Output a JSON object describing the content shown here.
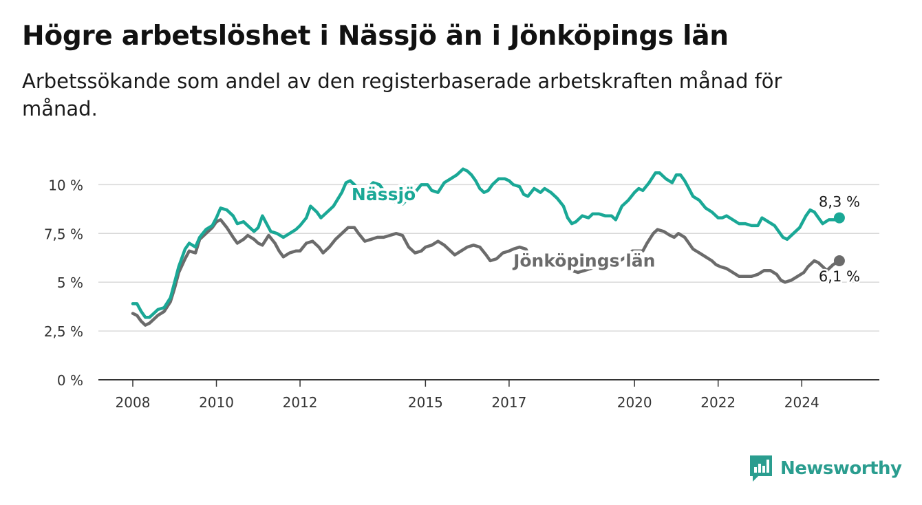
{
  "title": "Högre arbetslöshet i Nässjö än i Jönköpings län",
  "subtitle": "Arbetssökande som andel av den registerbaserade arbetskraften månad för månad.",
  "brand": {
    "name": "Newsworthy",
    "logo_icon": "bar-chart-speech-icon"
  },
  "colors": {
    "nassjo": "#1aa896",
    "lan": "#6b6b6b",
    "grid": "#d9d9d9",
    "axis": "#333333"
  },
  "chart_data": {
    "type": "line",
    "xlim": [
      2008.0,
      2025.0
    ],
    "ylim": [
      0,
      11
    ],
    "yticks": [
      0,
      2.5,
      5,
      7.5,
      10
    ],
    "ytick_labels": [
      "0 %",
      "2,5 %",
      "5 %",
      "7,5 %",
      "10 %"
    ],
    "xticks": [
      2008,
      2010,
      2012,
      2015,
      2017,
      2020,
      2022,
      2024
    ],
    "xtick_labels": [
      "2008",
      "2010",
      "2012",
      "2015",
      "2017",
      "2020",
      "2022",
      "2024"
    ],
    "grid": true,
    "series": [
      {
        "name": "Nässjö",
        "color": "#1aa896",
        "end_label": "8,3 %",
        "points": [
          [
            2008.0,
            3.9
          ],
          [
            2008.1,
            3.9
          ],
          [
            2008.2,
            3.5
          ],
          [
            2008.3,
            3.2
          ],
          [
            2008.4,
            3.2
          ],
          [
            2008.5,
            3.4
          ],
          [
            2008.6,
            3.6
          ],
          [
            2008.75,
            3.7
          ],
          [
            2008.9,
            4.2
          ],
          [
            2009.0,
            5.0
          ],
          [
            2009.1,
            5.8
          ],
          [
            2009.25,
            6.7
          ],
          [
            2009.35,
            7.0
          ],
          [
            2009.5,
            6.8
          ],
          [
            2009.6,
            7.3
          ],
          [
            2009.75,
            7.7
          ],
          [
            2009.9,
            7.9
          ],
          [
            2010.0,
            8.3
          ],
          [
            2010.1,
            8.8
          ],
          [
            2010.25,
            8.7
          ],
          [
            2010.4,
            8.4
          ],
          [
            2010.5,
            8.0
          ],
          [
            2010.65,
            8.1
          ],
          [
            2010.8,
            7.8
          ],
          [
            2010.9,
            7.6
          ],
          [
            2011.0,
            7.8
          ],
          [
            2011.1,
            8.4
          ],
          [
            2011.2,
            8.0
          ],
          [
            2011.3,
            7.6
          ],
          [
            2011.45,
            7.5
          ],
          [
            2011.6,
            7.3
          ],
          [
            2011.75,
            7.5
          ],
          [
            2011.9,
            7.7
          ],
          [
            2012.0,
            7.9
          ],
          [
            2012.15,
            8.3
          ],
          [
            2012.25,
            8.9
          ],
          [
            2012.4,
            8.6
          ],
          [
            2012.5,
            8.3
          ],
          [
            2012.65,
            8.6
          ],
          [
            2012.8,
            8.9
          ],
          [
            2013.0,
            9.6
          ],
          [
            2013.1,
            10.1
          ],
          [
            2013.2,
            10.2
          ],
          [
            2013.3,
            10.0
          ],
          [
            2013.45,
            9.6
          ],
          [
            2013.6,
            9.8
          ],
          [
            2013.75,
            10.1
          ],
          [
            2013.9,
            10.0
          ],
          [
            2014.0,
            9.7
          ],
          [
            2014.1,
            9.6
          ],
          [
            2014.2,
            9.2
          ],
          [
            2014.3,
            9.1
          ],
          [
            2014.45,
            9.0
          ],
          [
            2014.6,
            9.3
          ],
          [
            2014.75,
            9.6
          ],
          [
            2014.9,
            10.0
          ],
          [
            2015.05,
            10.0
          ],
          [
            2015.15,
            9.7
          ],
          [
            2015.3,
            9.6
          ],
          [
            2015.45,
            10.1
          ],
          [
            2015.6,
            10.3
          ],
          [
            2015.75,
            10.5
          ],
          [
            2015.9,
            10.8
          ],
          [
            2016.0,
            10.7
          ],
          [
            2016.1,
            10.5
          ],
          [
            2016.2,
            10.2
          ],
          [
            2016.3,
            9.8
          ],
          [
            2016.4,
            9.6
          ],
          [
            2016.5,
            9.7
          ],
          [
            2016.6,
            10.0
          ],
          [
            2016.75,
            10.3
          ],
          [
            2016.9,
            10.3
          ],
          [
            2017.0,
            10.2
          ],
          [
            2017.1,
            10.0
          ],
          [
            2017.25,
            9.9
          ],
          [
            2017.35,
            9.5
          ],
          [
            2017.45,
            9.4
          ],
          [
            2017.6,
            9.8
          ],
          [
            2017.75,
            9.6
          ],
          [
            2017.85,
            9.8
          ],
          [
            2018.0,
            9.6
          ],
          [
            2018.15,
            9.3
          ],
          [
            2018.3,
            8.9
          ],
          [
            2018.4,
            8.3
          ],
          [
            2018.5,
            8.0
          ],
          [
            2018.6,
            8.1
          ],
          [
            2018.75,
            8.4
          ],
          [
            2018.9,
            8.3
          ],
          [
            2019.0,
            8.5
          ],
          [
            2019.15,
            8.5
          ],
          [
            2019.3,
            8.4
          ],
          [
            2019.45,
            8.4
          ],
          [
            2019.55,
            8.2
          ],
          [
            2019.7,
            8.9
          ],
          [
            2019.85,
            9.2
          ],
          [
            2020.0,
            9.6
          ],
          [
            2020.1,
            9.8
          ],
          [
            2020.2,
            9.7
          ],
          [
            2020.35,
            10.1
          ],
          [
            2020.5,
            10.6
          ],
          [
            2020.6,
            10.6
          ],
          [
            2020.75,
            10.3
          ],
          [
            2020.9,
            10.1
          ],
          [
            2021.0,
            10.5
          ],
          [
            2021.1,
            10.5
          ],
          [
            2021.2,
            10.2
          ],
          [
            2021.3,
            9.8
          ],
          [
            2021.4,
            9.4
          ],
          [
            2021.55,
            9.2
          ],
          [
            2021.7,
            8.8
          ],
          [
            2021.85,
            8.6
          ],
          [
            2022.0,
            8.3
          ],
          [
            2022.1,
            8.3
          ],
          [
            2022.2,
            8.4
          ],
          [
            2022.35,
            8.2
          ],
          [
            2022.5,
            8.0
          ],
          [
            2022.65,
            8.0
          ],
          [
            2022.8,
            7.9
          ],
          [
            2022.95,
            7.9
          ],
          [
            2023.05,
            8.3
          ],
          [
            2023.2,
            8.1
          ],
          [
            2023.35,
            7.9
          ],
          [
            2023.45,
            7.6
          ],
          [
            2023.55,
            7.3
          ],
          [
            2023.65,
            7.2
          ],
          [
            2023.8,
            7.5
          ],
          [
            2023.95,
            7.8
          ],
          [
            2024.1,
            8.4
          ],
          [
            2024.2,
            8.7
          ],
          [
            2024.3,
            8.6
          ],
          [
            2024.4,
            8.3
          ],
          [
            2024.5,
            8.0
          ],
          [
            2024.65,
            8.2
          ],
          [
            2024.8,
            8.2
          ],
          [
            2024.9,
            8.3
          ]
        ]
      },
      {
        "name": "Jönköpings län",
        "color": "#6b6b6b",
        "end_label": "6,1 %",
        "points": [
          [
            2008.0,
            3.4
          ],
          [
            2008.1,
            3.3
          ],
          [
            2008.2,
            3.0
          ],
          [
            2008.3,
            2.8
          ],
          [
            2008.4,
            2.9
          ],
          [
            2008.5,
            3.1
          ],
          [
            2008.6,
            3.3
          ],
          [
            2008.75,
            3.5
          ],
          [
            2008.9,
            4.0
          ],
          [
            2009.0,
            4.7
          ],
          [
            2009.1,
            5.5
          ],
          [
            2009.25,
            6.2
          ],
          [
            2009.35,
            6.6
          ],
          [
            2009.5,
            6.5
          ],
          [
            2009.6,
            7.2
          ],
          [
            2009.75,
            7.5
          ],
          [
            2009.9,
            7.8
          ],
          [
            2010.0,
            8.1
          ],
          [
            2010.1,
            8.2
          ],
          [
            2010.25,
            7.8
          ],
          [
            2010.4,
            7.3
          ],
          [
            2010.5,
            7.0
          ],
          [
            2010.65,
            7.2
          ],
          [
            2010.75,
            7.4
          ],
          [
            2010.9,
            7.2
          ],
          [
            2011.0,
            7.0
          ],
          [
            2011.1,
            6.9
          ],
          [
            2011.25,
            7.4
          ],
          [
            2011.4,
            7.0
          ],
          [
            2011.5,
            6.6
          ],
          [
            2011.6,
            6.3
          ],
          [
            2011.75,
            6.5
          ],
          [
            2011.9,
            6.6
          ],
          [
            2012.0,
            6.6
          ],
          [
            2012.15,
            7.0
          ],
          [
            2012.3,
            7.1
          ],
          [
            2012.45,
            6.8
          ],
          [
            2012.55,
            6.5
          ],
          [
            2012.7,
            6.8
          ],
          [
            2012.85,
            7.2
          ],
          [
            2013.0,
            7.5
          ],
          [
            2013.15,
            7.8
          ],
          [
            2013.3,
            7.8
          ],
          [
            2013.4,
            7.5
          ],
          [
            2013.55,
            7.1
          ],
          [
            2013.7,
            7.2
          ],
          [
            2013.85,
            7.3
          ],
          [
            2014.0,
            7.3
          ],
          [
            2014.15,
            7.4
          ],
          [
            2014.3,
            7.5
          ],
          [
            2014.45,
            7.4
          ],
          [
            2014.6,
            6.8
          ],
          [
            2014.75,
            6.5
          ],
          [
            2014.9,
            6.6
          ],
          [
            2015.0,
            6.8
          ],
          [
            2015.15,
            6.9
          ],
          [
            2015.3,
            7.1
          ],
          [
            2015.45,
            6.9
          ],
          [
            2015.6,
            6.6
          ],
          [
            2015.7,
            6.4
          ],
          [
            2015.85,
            6.6
          ],
          [
            2016.0,
            6.8
          ],
          [
            2016.15,
            6.9
          ],
          [
            2016.3,
            6.8
          ],
          [
            2016.45,
            6.4
          ],
          [
            2016.55,
            6.1
          ],
          [
            2016.7,
            6.2
          ],
          [
            2016.85,
            6.5
          ],
          [
            2017.0,
            6.6
          ],
          [
            2017.1,
            6.7
          ],
          [
            2017.25,
            6.8
          ],
          [
            2017.4,
            6.7
          ],
          [
            2017.5,
            6.3
          ],
          [
            2017.6,
            6.0
          ],
          [
            2017.75,
            6.0
          ],
          [
            2017.9,
            6.2
          ],
          [
            2018.05,
            6.2
          ],
          [
            2018.2,
            6.1
          ],
          [
            2018.35,
            5.8
          ],
          [
            2018.5,
            5.6
          ],
          [
            2018.65,
            5.5
          ],
          [
            2018.8,
            5.6
          ],
          [
            2018.95,
            5.7
          ],
          [
            2019.1,
            5.8
          ],
          [
            2019.3,
            5.8
          ],
          [
            2019.5,
            5.9
          ],
          [
            2019.65,
            6.1
          ],
          [
            2019.8,
            6.3
          ],
          [
            2019.95,
            6.6
          ],
          [
            2020.05,
            6.6
          ],
          [
            2020.2,
            6.6
          ],
          [
            2020.3,
            7.0
          ],
          [
            2020.45,
            7.5
          ],
          [
            2020.55,
            7.7
          ],
          [
            2020.7,
            7.6
          ],
          [
            2020.85,
            7.4
          ],
          [
            2020.95,
            7.3
          ],
          [
            2021.05,
            7.5
          ],
          [
            2021.2,
            7.3
          ],
          [
            2021.3,
            7.0
          ],
          [
            2021.4,
            6.7
          ],
          [
            2021.55,
            6.5
          ],
          [
            2021.7,
            6.3
          ],
          [
            2021.85,
            6.1
          ],
          [
            2021.95,
            5.9
          ],
          [
            2022.05,
            5.8
          ],
          [
            2022.2,
            5.7
          ],
          [
            2022.35,
            5.5
          ],
          [
            2022.5,
            5.3
          ],
          [
            2022.65,
            5.3
          ],
          [
            2022.8,
            5.3
          ],
          [
            2022.95,
            5.4
          ],
          [
            2023.1,
            5.6
          ],
          [
            2023.25,
            5.6
          ],
          [
            2023.4,
            5.4
          ],
          [
            2023.5,
            5.1
          ],
          [
            2023.6,
            5.0
          ],
          [
            2023.75,
            5.1
          ],
          [
            2023.9,
            5.3
          ],
          [
            2024.05,
            5.5
          ],
          [
            2024.15,
            5.8
          ],
          [
            2024.3,
            6.1
          ],
          [
            2024.4,
            6.0
          ],
          [
            2024.5,
            5.8
          ],
          [
            2024.6,
            5.6
          ],
          [
            2024.75,
            5.9
          ],
          [
            2024.9,
            6.1
          ]
        ]
      }
    ],
    "series_labels": [
      {
        "text": "Nässjö",
        "x": 2014.0,
        "y": 9.2
      },
      {
        "text": "Jönköpings län",
        "x": 2018.8,
        "y": 5.8
      }
    ]
  }
}
